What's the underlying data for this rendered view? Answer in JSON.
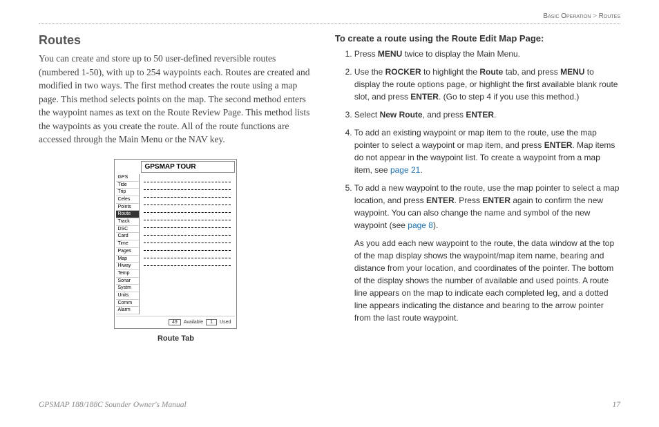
{
  "breadcrumb": {
    "section": "Basic Operation",
    "separator": ">",
    "subsection": "Routes"
  },
  "left": {
    "heading": "Routes",
    "paragraph": "You can create and store up to 50 user-defined reversible routes (numbered 1-50), with up to 254 waypoints each. Routes are created and modified in two ways. The first method creates the route using a map page. This method selects points on the map. The second method enters the waypoint names as text on the Route Review Page. This method lists the waypoints as you create the route. All of the route functions are accessed through the Main Menu or the NAV key.",
    "route_tab": {
      "header": "GPSMAP TOUR",
      "side_items": [
        "GPS",
        "Tide",
        "Trip",
        "Celes",
        "Points",
        "Route",
        "Track",
        "DSC",
        "Card",
        "Time",
        "Pages",
        "Map",
        "Hiway",
        "Temp",
        "Sonar",
        "Systm",
        "Units",
        "Comm",
        "Alarm"
      ],
      "highlight_index": 5,
      "line_count": 12,
      "footer": {
        "available_count": "49",
        "available_label": "Available",
        "used_count": "1",
        "used_label": "Used"
      }
    },
    "caption": "Route Tab"
  },
  "right": {
    "subheading": "To create a route using the Route Edit Map Page:",
    "steps": [
      {
        "segments": [
          {
            "t": "Press "
          },
          {
            "t": "MENU",
            "b": true
          },
          {
            "t": " twice to display the Main Menu."
          }
        ]
      },
      {
        "segments": [
          {
            "t": "Use the "
          },
          {
            "t": "ROCKER",
            "b": true
          },
          {
            "t": " to highlight the "
          },
          {
            "t": "Route",
            "b": true
          },
          {
            "t": " tab, and press "
          },
          {
            "t": "MENU",
            "b": true
          },
          {
            "t": " to display the route options page, or highlight the first available blank route slot, and press "
          },
          {
            "t": "ENTER",
            "b": true
          },
          {
            "t": ". (Go to step 4 if you use this method.)"
          }
        ]
      },
      {
        "segments": [
          {
            "t": "Select "
          },
          {
            "t": "New Route",
            "b": true
          },
          {
            "t": ", and press "
          },
          {
            "t": "ENTER",
            "b": true
          },
          {
            "t": "."
          }
        ]
      },
      {
        "segments": [
          {
            "t": "To add an existing waypoint or map item to the route, use the map pointer to select a waypoint or map item, and press "
          },
          {
            "t": "ENTER",
            "b": true
          },
          {
            "t": ". Map items do not appear in the waypoint list. To create a waypoint from a map item, see "
          },
          {
            "t": "page 21",
            "link": true
          },
          {
            "t": "."
          }
        ]
      },
      {
        "segments": [
          {
            "t": "To add a new waypoint to the route, use the map pointer to select a map location, and press "
          },
          {
            "t": "ENTER",
            "b": true
          },
          {
            "t": ". Press "
          },
          {
            "t": "ENTER",
            "b": true
          },
          {
            "t": " again to confirm the new waypoint. You can also change the name and symbol of the new waypoint (see "
          },
          {
            "t": "page 8",
            "link": true
          },
          {
            "t": ")."
          }
        ],
        "extra": "As you add each new waypoint to the route, the data window at the top of the map display shows the waypoint/map item name, bearing and distance from your location, and coordinates of the pointer. The bottom of the display shows the number of available and used points. A route line appears on the map to indicate each completed leg, and a dotted line appears indicating the distance and bearing to the arrow pointer from the last route waypoint."
      }
    ]
  },
  "footer": {
    "manual_title": "GPSMAP 188/188C Sounder Owner's Manual",
    "page_number": "17"
  }
}
